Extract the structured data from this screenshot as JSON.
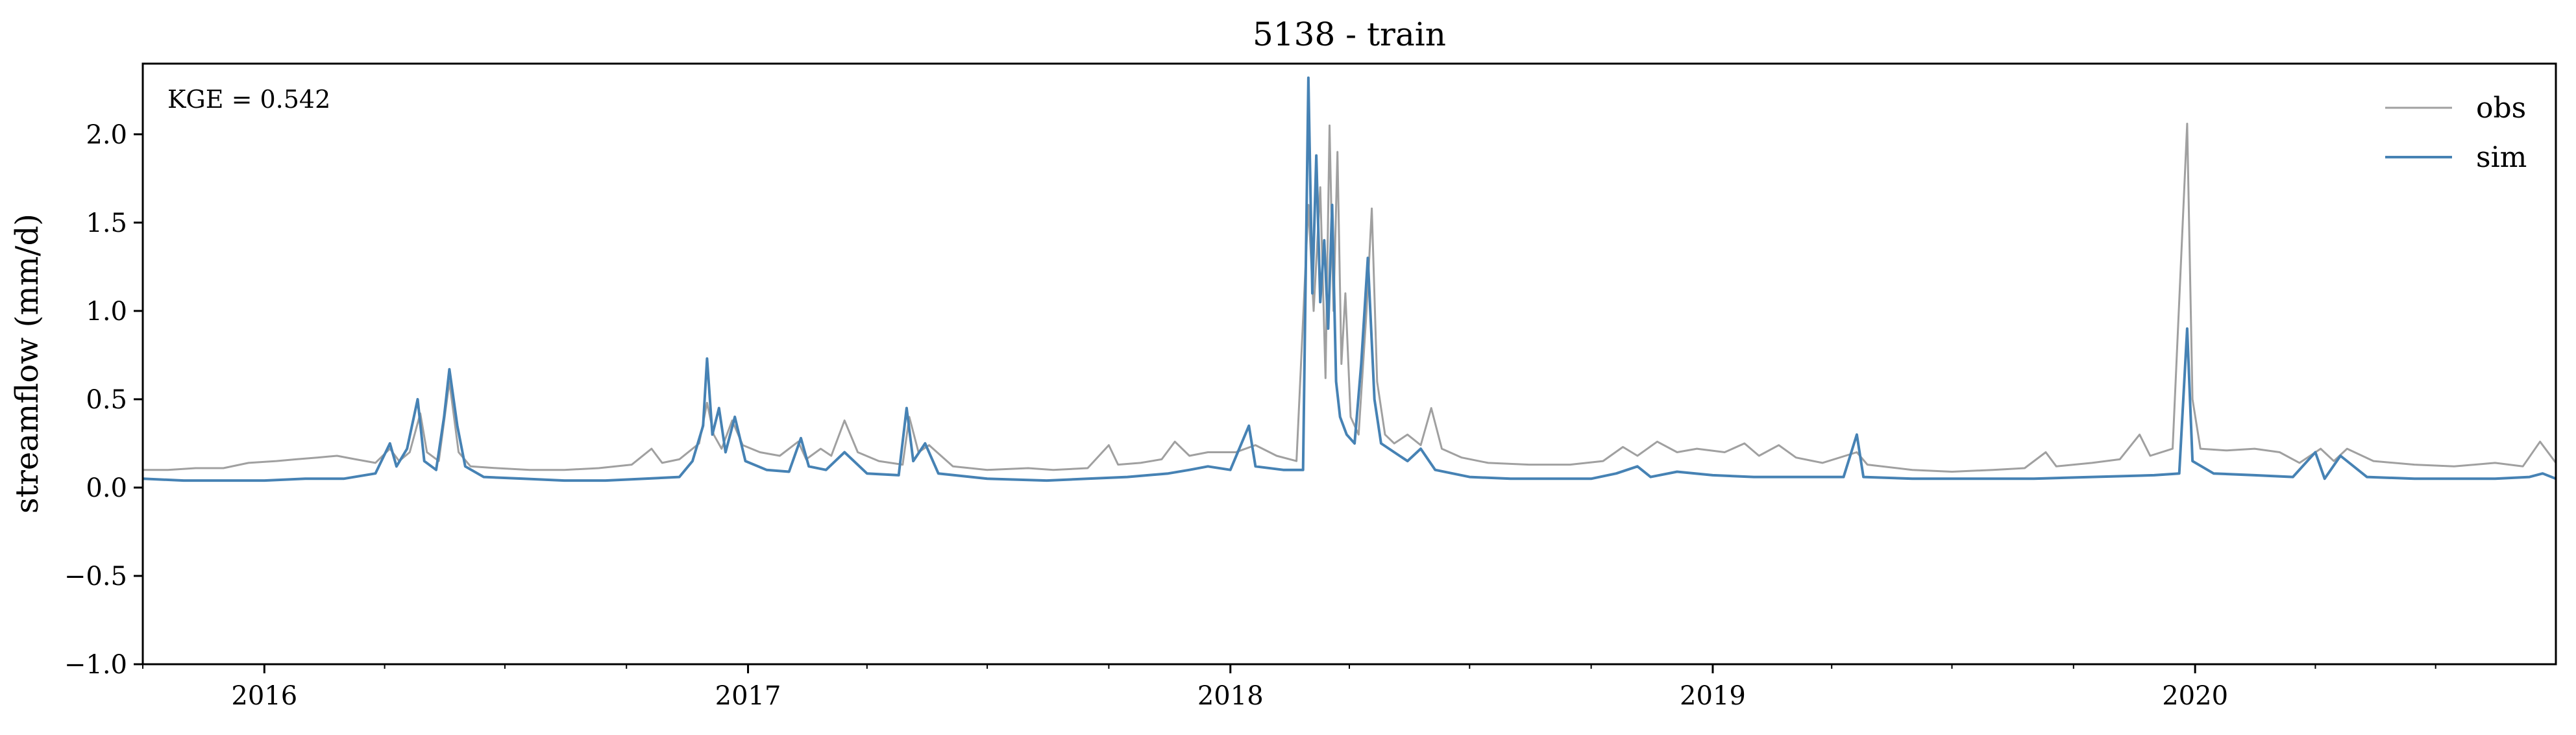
{
  "chart_data": {
    "type": "line",
    "title": "5138 - train",
    "xlabel": "",
    "ylabel": "streamflow (mm/d)",
    "annotation": "KGE = 0.542",
    "x_range": [
      "2015-10-01",
      "2020-09-30"
    ],
    "ylim": [
      -1.0,
      2.4
    ],
    "yticks": [
      -1.0,
      -0.5,
      0.0,
      0.5,
      1.0,
      1.5,
      2.0
    ],
    "ytick_labels": [
      "−1.0",
      "−0.5",
      "0.0",
      "0.5",
      "1.0",
      "1.5",
      "2.0"
    ],
    "xticks": [
      "2016-01-01",
      "2017-01-01",
      "2018-01-01",
      "2019-01-01",
      "2020-01-01"
    ],
    "xtick_labels": [
      "2016",
      "2017",
      "2018",
      "2019",
      "2020"
    ],
    "grid": false,
    "legend_position": "top-right",
    "series": [
      {
        "name": "obs",
        "color": "#a0a0a0",
        "points": [
          [
            "2015-10-01",
            0.1
          ],
          [
            "2015-10-20",
            0.1
          ],
          [
            "2015-11-10",
            0.11
          ],
          [
            "2015-12-01",
            0.11
          ],
          [
            "2015-12-20",
            0.14
          ],
          [
            "2016-01-10",
            0.15
          ],
          [
            "2016-01-25",
            0.16
          ],
          [
            "2016-02-10",
            0.17
          ],
          [
            "2016-02-25",
            0.18
          ],
          [
            "2016-03-10",
            0.16
          ],
          [
            "2016-03-25",
            0.14
          ],
          [
            "2016-04-05",
            0.22
          ],
          [
            "2016-04-12",
            0.15
          ],
          [
            "2016-04-20",
            0.2
          ],
          [
            "2016-04-28",
            0.42
          ],
          [
            "2016-05-03",
            0.2
          ],
          [
            "2016-05-12",
            0.15
          ],
          [
            "2016-05-20",
            0.6
          ],
          [
            "2016-05-27",
            0.2
          ],
          [
            "2016-06-05",
            0.12
          ],
          [
            "2016-06-25",
            0.11
          ],
          [
            "2016-07-20",
            0.1
          ],
          [
            "2016-08-15",
            0.1
          ],
          [
            "2016-09-10",
            0.11
          ],
          [
            "2016-10-05",
            0.13
          ],
          [
            "2016-10-20",
            0.22
          ],
          [
            "2016-10-28",
            0.14
          ],
          [
            "2016-11-10",
            0.16
          ],
          [
            "2016-11-25",
            0.25
          ],
          [
            "2016-12-01",
            0.48
          ],
          [
            "2016-12-06",
            0.3
          ],
          [
            "2016-12-12",
            0.22
          ],
          [
            "2016-12-20",
            0.38
          ],
          [
            "2016-12-28",
            0.24
          ],
          [
            "2017-01-10",
            0.2
          ],
          [
            "2017-01-25",
            0.18
          ],
          [
            "2017-02-08",
            0.26
          ],
          [
            "2017-02-14",
            0.16
          ],
          [
            "2017-02-25",
            0.22
          ],
          [
            "2017-03-05",
            0.18
          ],
          [
            "2017-03-15",
            0.38
          ],
          [
            "2017-03-25",
            0.2
          ],
          [
            "2017-04-10",
            0.15
          ],
          [
            "2017-04-28",
            0.13
          ],
          [
            "2017-05-03",
            0.4
          ],
          [
            "2017-05-10",
            0.2
          ],
          [
            "2017-05-18",
            0.24
          ],
          [
            "2017-06-05",
            0.12
          ],
          [
            "2017-07-01",
            0.1
          ],
          [
            "2017-08-01",
            0.11
          ],
          [
            "2017-08-20",
            0.1
          ],
          [
            "2017-09-15",
            0.11
          ],
          [
            "2017-10-01",
            0.24
          ],
          [
            "2017-10-08",
            0.13
          ],
          [
            "2017-10-25",
            0.14
          ],
          [
            "2017-11-10",
            0.16
          ],
          [
            "2017-11-20",
            0.26
          ],
          [
            "2017-12-01",
            0.18
          ],
          [
            "2017-12-15",
            0.2
          ],
          [
            "2018-01-05",
            0.2
          ],
          [
            "2018-01-20",
            0.24
          ],
          [
            "2018-02-05",
            0.18
          ],
          [
            "2018-02-20",
            0.15
          ],
          [
            "2018-03-01",
            1.6
          ],
          [
            "2018-03-05",
            1.0
          ],
          [
            "2018-03-10",
            1.7
          ],
          [
            "2018-03-14",
            0.62
          ],
          [
            "2018-03-17",
            2.05
          ],
          [
            "2018-03-20",
            1.0
          ],
          [
            "2018-03-23",
            1.9
          ],
          [
            "2018-03-26",
            0.7
          ],
          [
            "2018-03-29",
            1.1
          ],
          [
            "2018-04-02",
            0.4
          ],
          [
            "2018-04-08",
            0.3
          ],
          [
            "2018-04-14",
            1.0
          ],
          [
            "2018-04-18",
            1.58
          ],
          [
            "2018-04-22",
            0.6
          ],
          [
            "2018-04-28",
            0.3
          ],
          [
            "2018-05-05",
            0.25
          ],
          [
            "2018-05-15",
            0.3
          ],
          [
            "2018-05-25",
            0.24
          ],
          [
            "2018-06-02",
            0.45
          ],
          [
            "2018-06-10",
            0.22
          ],
          [
            "2018-06-25",
            0.17
          ],
          [
            "2018-07-15",
            0.14
          ],
          [
            "2018-08-15",
            0.13
          ],
          [
            "2018-09-15",
            0.13
          ],
          [
            "2018-10-10",
            0.15
          ],
          [
            "2018-10-25",
            0.23
          ],
          [
            "2018-11-05",
            0.18
          ],
          [
            "2018-11-20",
            0.26
          ],
          [
            "2018-12-05",
            0.2
          ],
          [
            "2018-12-20",
            0.22
          ],
          [
            "2019-01-10",
            0.2
          ],
          [
            "2019-01-25",
            0.25
          ],
          [
            "2019-02-05",
            0.18
          ],
          [
            "2019-02-20",
            0.24
          ],
          [
            "2019-03-05",
            0.17
          ],
          [
            "2019-03-25",
            0.14
          ],
          [
            "2019-04-20",
            0.2
          ],
          [
            "2019-04-28",
            0.13
          ],
          [
            "2019-06-01",
            0.1
          ],
          [
            "2019-07-01",
            0.09
          ],
          [
            "2019-08-01",
            0.1
          ],
          [
            "2019-08-25",
            0.11
          ],
          [
            "2019-09-10",
            0.2
          ],
          [
            "2019-09-18",
            0.12
          ],
          [
            "2019-10-15",
            0.14
          ],
          [
            "2019-11-05",
            0.16
          ],
          [
            "2019-11-20",
            0.3
          ],
          [
            "2019-11-28",
            0.18
          ],
          [
            "2019-12-15",
            0.22
          ],
          [
            "2019-12-26",
            2.06
          ],
          [
            "2019-12-30",
            0.5
          ],
          [
            "2020-01-05",
            0.22
          ],
          [
            "2020-01-25",
            0.21
          ],
          [
            "2020-02-15",
            0.22
          ],
          [
            "2020-03-05",
            0.2
          ],
          [
            "2020-03-20",
            0.14
          ],
          [
            "2020-04-05",
            0.22
          ],
          [
            "2020-04-15",
            0.15
          ],
          [
            "2020-04-25",
            0.22
          ],
          [
            "2020-05-15",
            0.15
          ],
          [
            "2020-06-15",
            0.13
          ],
          [
            "2020-07-15",
            0.12
          ],
          [
            "2020-08-15",
            0.14
          ],
          [
            "2020-09-05",
            0.12
          ],
          [
            "2020-09-18",
            0.26
          ],
          [
            "2020-09-30",
            0.14
          ]
        ]
      },
      {
        "name": "sim",
        "color": "#4682b4",
        "points": [
          [
            "2015-10-01",
            0.05
          ],
          [
            "2015-11-01",
            0.04
          ],
          [
            "2015-12-01",
            0.04
          ],
          [
            "2016-01-01",
            0.04
          ],
          [
            "2016-02-01",
            0.05
          ],
          [
            "2016-03-01",
            0.05
          ],
          [
            "2016-03-25",
            0.08
          ],
          [
            "2016-04-05",
            0.25
          ],
          [
            "2016-04-10",
            0.12
          ],
          [
            "2016-04-18",
            0.22
          ],
          [
            "2016-04-26",
            0.5
          ],
          [
            "2016-05-01",
            0.15
          ],
          [
            "2016-05-10",
            0.1
          ],
          [
            "2016-05-16",
            0.4
          ],
          [
            "2016-05-20",
            0.67
          ],
          [
            "2016-05-26",
            0.35
          ],
          [
            "2016-06-01",
            0.12
          ],
          [
            "2016-06-15",
            0.06
          ],
          [
            "2016-07-15",
            0.05
          ],
          [
            "2016-08-15",
            0.04
          ],
          [
            "2016-09-15",
            0.04
          ],
          [
            "2016-10-15",
            0.05
          ],
          [
            "2016-11-10",
            0.06
          ],
          [
            "2016-11-20",
            0.15
          ],
          [
            "2016-11-28",
            0.35
          ],
          [
            "2016-12-01",
            0.73
          ],
          [
            "2016-12-05",
            0.3
          ],
          [
            "2016-12-10",
            0.45
          ],
          [
            "2016-12-15",
            0.2
          ],
          [
            "2016-12-22",
            0.4
          ],
          [
            "2016-12-30",
            0.15
          ],
          [
            "2017-01-15",
            0.1
          ],
          [
            "2017-02-01",
            0.09
          ],
          [
            "2017-02-10",
            0.28
          ],
          [
            "2017-02-16",
            0.12
          ],
          [
            "2017-03-01",
            0.1
          ],
          [
            "2017-03-15",
            0.2
          ],
          [
            "2017-04-01",
            0.08
          ],
          [
            "2017-04-25",
            0.07
          ],
          [
            "2017-05-01",
            0.45
          ],
          [
            "2017-05-06",
            0.15
          ],
          [
            "2017-05-15",
            0.25
          ],
          [
            "2017-05-25",
            0.08
          ],
          [
            "2017-07-01",
            0.05
          ],
          [
            "2017-08-15",
            0.04
          ],
          [
            "2017-09-15",
            0.05
          ],
          [
            "2017-10-15",
            0.06
          ],
          [
            "2017-11-15",
            0.08
          ],
          [
            "2017-12-01",
            0.1
          ],
          [
            "2017-12-15",
            0.12
          ],
          [
            "2018-01-01",
            0.1
          ],
          [
            "2018-01-15",
            0.35
          ],
          [
            "2018-01-20",
            0.12
          ],
          [
            "2018-02-10",
            0.1
          ],
          [
            "2018-02-25",
            0.1
          ],
          [
            "2018-03-01",
            2.32
          ],
          [
            "2018-03-04",
            1.1
          ],
          [
            "2018-03-07",
            1.88
          ],
          [
            "2018-03-10",
            1.05
          ],
          [
            "2018-03-13",
            1.4
          ],
          [
            "2018-03-16",
            0.9
          ],
          [
            "2018-03-19",
            1.6
          ],
          [
            "2018-03-22",
            0.6
          ],
          [
            "2018-03-25",
            0.4
          ],
          [
            "2018-03-30",
            0.3
          ],
          [
            "2018-04-05",
            0.25
          ],
          [
            "2018-04-10",
            0.7
          ],
          [
            "2018-04-15",
            1.3
          ],
          [
            "2018-04-20",
            0.5
          ],
          [
            "2018-04-25",
            0.25
          ],
          [
            "2018-05-05",
            0.2
          ],
          [
            "2018-05-15",
            0.15
          ],
          [
            "2018-05-25",
            0.22
          ],
          [
            "2018-06-05",
            0.1
          ],
          [
            "2018-07-01",
            0.06
          ],
          [
            "2018-08-01",
            0.05
          ],
          [
            "2018-09-01",
            0.05
          ],
          [
            "2018-10-01",
            0.05
          ],
          [
            "2018-10-20",
            0.08
          ],
          [
            "2018-11-05",
            0.12
          ],
          [
            "2018-11-15",
            0.06
          ],
          [
            "2018-12-05",
            0.09
          ],
          [
            "2019-01-01",
            0.07
          ],
          [
            "2019-02-01",
            0.06
          ],
          [
            "2019-03-01",
            0.06
          ],
          [
            "2019-04-10",
            0.06
          ],
          [
            "2019-04-20",
            0.3
          ],
          [
            "2019-04-25",
            0.06
          ],
          [
            "2019-06-01",
            0.05
          ],
          [
            "2019-07-15",
            0.05
          ],
          [
            "2019-09-01",
            0.05
          ],
          [
            "2019-10-15",
            0.06
          ],
          [
            "2019-12-01",
            0.07
          ],
          [
            "2019-12-20",
            0.08
          ],
          [
            "2019-12-26",
            0.9
          ],
          [
            "2019-12-30",
            0.15
          ],
          [
            "2020-01-15",
            0.08
          ],
          [
            "2020-02-15",
            0.07
          ],
          [
            "2020-03-15",
            0.06
          ],
          [
            "2020-04-01",
            0.2
          ],
          [
            "2020-04-08",
            0.05
          ],
          [
            "2020-04-20",
            0.18
          ],
          [
            "2020-05-10",
            0.06
          ],
          [
            "2020-06-15",
            0.05
          ],
          [
            "2020-07-15",
            0.05
          ],
          [
            "2020-08-15",
            0.05
          ],
          [
            "2020-09-10",
            0.06
          ],
          [
            "2020-09-20",
            0.08
          ],
          [
            "2020-09-30",
            0.05
          ]
        ]
      }
    ]
  }
}
